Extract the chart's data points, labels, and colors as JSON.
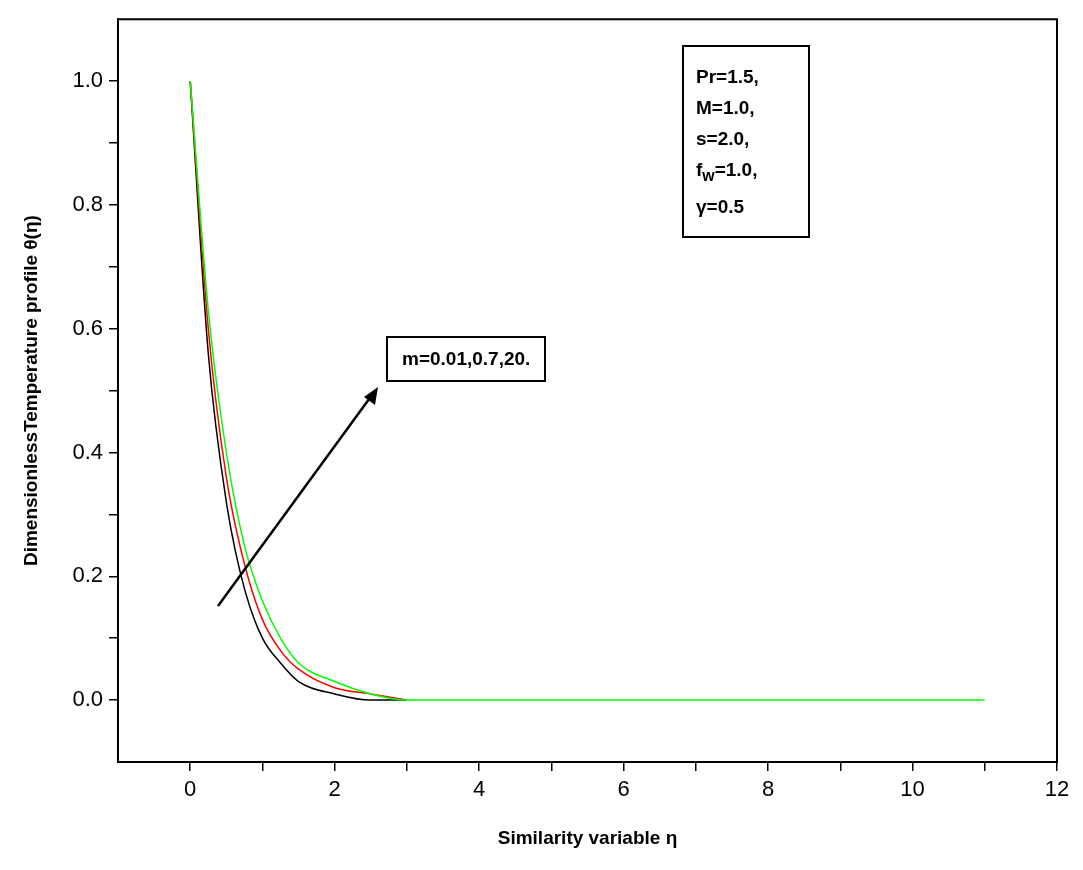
{
  "chart_data": {
    "type": "line",
    "xlabel": "Similarity variable η",
    "ylabel": "DimensionlessTemperature profile θ(η)",
    "x": [
      0,
      0.25,
      0.5,
      0.75,
      1,
      1.25,
      1.5,
      2,
      2.5,
      3,
      4,
      6,
      8,
      11
    ],
    "series": [
      {
        "color": "#000000",
        "values": [
          1,
          0.56,
          0.32,
          0.18,
          0.1,
          0.06,
          0.03,
          0.01,
          0,
          0,
          null,
          null,
          null,
          null
        ]
      },
      {
        "color": "#ff0000",
        "values": [
          1,
          0.6,
          0.36,
          0.22,
          0.13,
          0.08,
          0.05,
          0.02,
          0.01,
          0,
          null,
          null,
          null,
          null
        ]
      },
      {
        "color": "#00ff00",
        "values": [
          1,
          0.63,
          0.4,
          0.25,
          0.16,
          0.1,
          0.06,
          0.03,
          0.01,
          0,
          0,
          0,
          0,
          0
        ]
      }
    ],
    "xlim": [
      -1,
      12
    ],
    "xticks": [
      0,
      {
        "value": 1,
        "label": null
      },
      2,
      {
        "value": 3,
        "label": null
      },
      4,
      {
        "value": 5,
        "label": null
      },
      6,
      {
        "value": 7,
        "label": null
      },
      8,
      {
        "value": 9,
        "label": null
      },
      10,
      {
        "value": 11,
        "label": null
      },
      12
    ],
    "ylim": [
      -0.1,
      1.1
    ],
    "yticks": [
      {
        "value": 0.0,
        "label": "0.0"
      },
      {
        "value": 0.1,
        "label": null
      },
      0.2,
      {
        "value": 0.3,
        "label": null
      },
      0.4,
      {
        "value": 0.5,
        "label": null
      },
      0.6,
      {
        "value": 0.7,
        "label": null
      },
      0.8,
      {
        "value": 0.9,
        "label": null
      },
      {
        "value": 1,
        "label": "1.0"
      }
    ],
    "grid": false,
    "legend": false,
    "marker": "none",
    "line_style": "solid",
    "annotations": [
      "Pr=1.5,\nM=1.0,\ns=2.0,\nf$_{w}$=1.0,\nγ=0.5",
      "m=0.01,0.7,20."
    ]
  }
}
